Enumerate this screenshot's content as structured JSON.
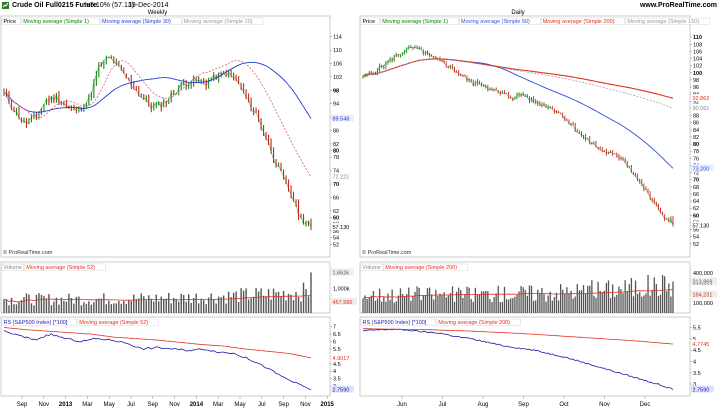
{
  "header": {
    "symbol": "Crude Oil Full0215 Future",
    "change": "+5.10% (57.13)",
    "date": "19-Dec-2014",
    "brand": "www.ProRealTime.com"
  },
  "colors": {
    "ma1": "#008000",
    "ma30": "#1f3fd0",
    "ma10": "#cc6677",
    "ma50": "#2f4fdf",
    "ma200": "#e03020",
    "ma150": "#999999",
    "rs": "#1a1aa8",
    "vol": "#555555",
    "current": "#f0d000"
  },
  "panels": {
    "weekly": {
      "period_label": "Weekly",
      "price_legend": [
        "Price",
        "Moving average (Simple 1)",
        "Moving average (Simple 30)",
        "Moving average (Simple 10)"
      ],
      "volume_legend": [
        "Volume",
        "Moving average (Simple 52)"
      ],
      "rs_legend": [
        "RS (S&P500 Index) [*100]",
        "Moving average (Simple 52)"
      ],
      "watermark": "© ProRealTime.com",
      "price_ticks": [
        "114",
        "110",
        "106",
        "102",
        "98",
        "94",
        "90",
        "86",
        "82",
        "80",
        "78",
        "74",
        "70",
        "66",
        "62",
        "60",
        "58",
        "56",
        "54",
        "52"
      ],
      "price_bold_ticks": [
        "98",
        "80",
        "70",
        "60"
      ],
      "price_tags": {
        "ma30": "89.548",
        "ma10": "72.221",
        "price": "57.13",
        "ma1": "57.130"
      },
      "volume_ticks": [
        "1,000k",
        "500,000"
      ],
      "volume_tags": {
        "vol": "1.652k",
        "ma": "457,586"
      },
      "rs_ticks": [
        "7",
        "6.5",
        "6",
        "5.5",
        "5",
        "4.5",
        "4",
        "3.5",
        "3"
      ],
      "rs_tags": {
        "ma": "4.9017",
        "rs": "2.7590"
      },
      "x_labels": [
        {
          "t": "Sep"
        },
        {
          "t": "Nov"
        },
        {
          "t": "2013",
          "b": true
        },
        {
          "t": "Mar"
        },
        {
          "t": "May"
        },
        {
          "t": "Jul"
        },
        {
          "t": "Sep"
        },
        {
          "t": "Nov"
        },
        {
          "t": "2014",
          "b": true
        },
        {
          "t": "Mar"
        },
        {
          "t": "May"
        },
        {
          "t": "Jul"
        },
        {
          "t": "Sep"
        },
        {
          "t": "Nov"
        },
        {
          "t": "2015",
          "b": true
        }
      ]
    },
    "daily": {
      "period_label": "Daily",
      "price_legend": [
        "Price",
        "Moving average (Simple 1)",
        "Moving average (Simple 50)",
        "Moving average (Simple 200)",
        "Moving average (Simple 150)"
      ],
      "volume_legend": [
        "Volume",
        "Moving average (Simple 200)"
      ],
      "rs_legend": [
        "RS (S&P500 Index) [*100]",
        "Moving average (Simple 200)"
      ],
      "watermark": "© ProRealTime.com",
      "price_ticks": [
        "110",
        "108",
        "106",
        "104",
        "102",
        "100",
        "98",
        "96",
        "94",
        "92",
        "90",
        "88",
        "86",
        "84",
        "82",
        "80",
        "78",
        "76",
        "74",
        "72",
        "70",
        "68",
        "66",
        "64",
        "62",
        "60",
        "58",
        "56",
        "54",
        "52"
      ],
      "price_bold_ticks": [
        "110",
        "100",
        "90",
        "80",
        "70",
        "60"
      ],
      "price_tags": {
        "ma200": "92.862",
        "ma150": "90.061",
        "ma50": "73.200",
        "price": "57.13",
        "ma1": "57.130"
      },
      "volume_ticks": [
        "400,000",
        "300,000",
        "200,000",
        "100,000"
      ],
      "volume_tags": {
        "vol": "313,869",
        "ma": "184,231"
      },
      "rs_ticks": [
        "5.5",
        "5",
        "4.5",
        "4",
        "3.5",
        "3"
      ],
      "rs_tags": {
        "ma": "4.7745",
        "rs": "2.7590"
      },
      "x_labels": [
        {
          "t": "Jun"
        },
        {
          "t": "Jul"
        },
        {
          "t": "Aug"
        },
        {
          "t": "Sep"
        },
        {
          "t": "Oct"
        },
        {
          "t": "Nov"
        },
        {
          "t": "Dec"
        }
      ]
    }
  },
  "chart_data": [
    {
      "type": "line",
      "title": "Crude Oil Full0215 Future — Weekly",
      "x": [
        "Sep 2012",
        "Nov 2012",
        "Jan 2013",
        "Mar 2013",
        "May 2013",
        "Jul 2013",
        "Sep 2013",
        "Nov 2013",
        "Jan 2014",
        "Mar 2014",
        "May 2014",
        "Jul 2014",
        "Sep 2014",
        "Nov 2014",
        "Dec 2014"
      ],
      "series": [
        {
          "name": "Price (Simple 1)",
          "values": [
            96,
            88,
            95,
            92,
            93,
            105,
            104,
            94,
            96,
            99,
            101,
            102,
            92,
            75,
            57.13
          ]
        },
        {
          "name": "Moving average (Simple 30)",
          "values": [
            98,
            97,
            95,
            94,
            93,
            96,
            99,
            99,
            98,
            98,
            98,
            99,
            98,
            94,
            89.548
          ]
        },
        {
          "name": "Moving average (Simple 10)",
          "values": [
            94,
            90,
            92,
            93,
            93,
            100,
            104,
            99,
            96,
            99,
            100,
            102,
            96,
            84,
            72.221
          ]
        }
      ],
      "ylim": [
        52,
        114
      ]
    },
    {
      "type": "bar",
      "title": "Weekly Volume",
      "series": [
        {
          "name": "Volume",
          "last": 1652000
        },
        {
          "name": "Moving average (Simple 52)",
          "last": 457586
        }
      ],
      "ylim": [
        0,
        1700000
      ]
    },
    {
      "type": "line",
      "title": "Weekly RS (S&P500 Index) [*100]",
      "x": [
        "Sep 2012",
        "Nov 2012",
        "Jan 2013",
        "Mar 2013",
        "May 2013",
        "Jul 2013",
        "Sep 2013",
        "Nov 2013",
        "Jan 2014",
        "Mar 2014",
        "May 2014",
        "Jul 2014",
        "Sep 2014",
        "Nov 2014",
        "Dec 2014"
      ],
      "series": [
        {
          "name": "RS",
          "values": [
            6.6,
            6.3,
            6.6,
            6.2,
            5.9,
            6.3,
            6.1,
            5.5,
            5.5,
            5.5,
            5.4,
            5.3,
            4.7,
            3.8,
            2.759
          ]
        },
        {
          "name": "Moving average (Simple 52)",
          "values": [
            6.8,
            6.7,
            6.6,
            6.5,
            6.4,
            6.3,
            6.2,
            6.1,
            5.9,
            5.8,
            5.7,
            5.6,
            5.4,
            5.2,
            4.9017
          ]
        }
      ],
      "ylim": [
        2.6,
        7.2
      ]
    },
    {
      "type": "line",
      "title": "Crude Oil Full0215 Future — Daily",
      "x": [
        "May 2014",
        "Jun",
        "Jul",
        "Aug",
        "Sep",
        "Oct",
        "Nov",
        "Dec",
        "19-Dec-2014"
      ],
      "series": [
        {
          "name": "Price (Simple 1)",
          "values": [
            98.5,
            102,
            105,
            97,
            93,
            88,
            80,
            68,
            57.13
          ]
        },
        {
          "name": "Moving average (Simple 50)",
          "values": [
            99,
            100,
            101,
            101,
            98,
            94,
            88,
            80,
            73.2
          ]
        },
        {
          "name": "Moving average (Simple 200)",
          "values": [
            97,
            97.5,
            98,
            98,
            97.5,
            97,
            96,
            94.5,
            92.862
          ]
        },
        {
          "name": "Moving average (Simple 150)",
          "values": [
            98,
            98.5,
            99,
            99,
            98,
            96.5,
            95,
            92.5,
            90.061
          ]
        }
      ],
      "ylim": [
        52,
        111
      ]
    },
    {
      "type": "bar",
      "title": "Daily Volume",
      "series": [
        {
          "name": "Volume",
          "last": 313869
        },
        {
          "name": "Moving average (Simple 200)",
          "last": 184231
        }
      ],
      "ylim": [
        0,
        420000
      ]
    },
    {
      "type": "line",
      "title": "Daily RS (S&P500 Index) [*100]",
      "x": [
        "May 2014",
        "Jun",
        "Jul",
        "Aug",
        "Sep",
        "Oct",
        "Nov",
        "Dec",
        "19-Dec-2014"
      ],
      "series": [
        {
          "name": "RS",
          "values": [
            5.4,
            5.4,
            5.3,
            5.0,
            4.6,
            4.4,
            3.9,
            3.3,
            2.759
          ]
        },
        {
          "name": "Moving average (Simple 200)",
          "values": [
            5.45,
            5.42,
            5.4,
            5.35,
            5.25,
            5.15,
            5.0,
            4.9,
            4.7745
          ]
        }
      ],
      "ylim": [
        2.7,
        5.7
      ]
    }
  ]
}
